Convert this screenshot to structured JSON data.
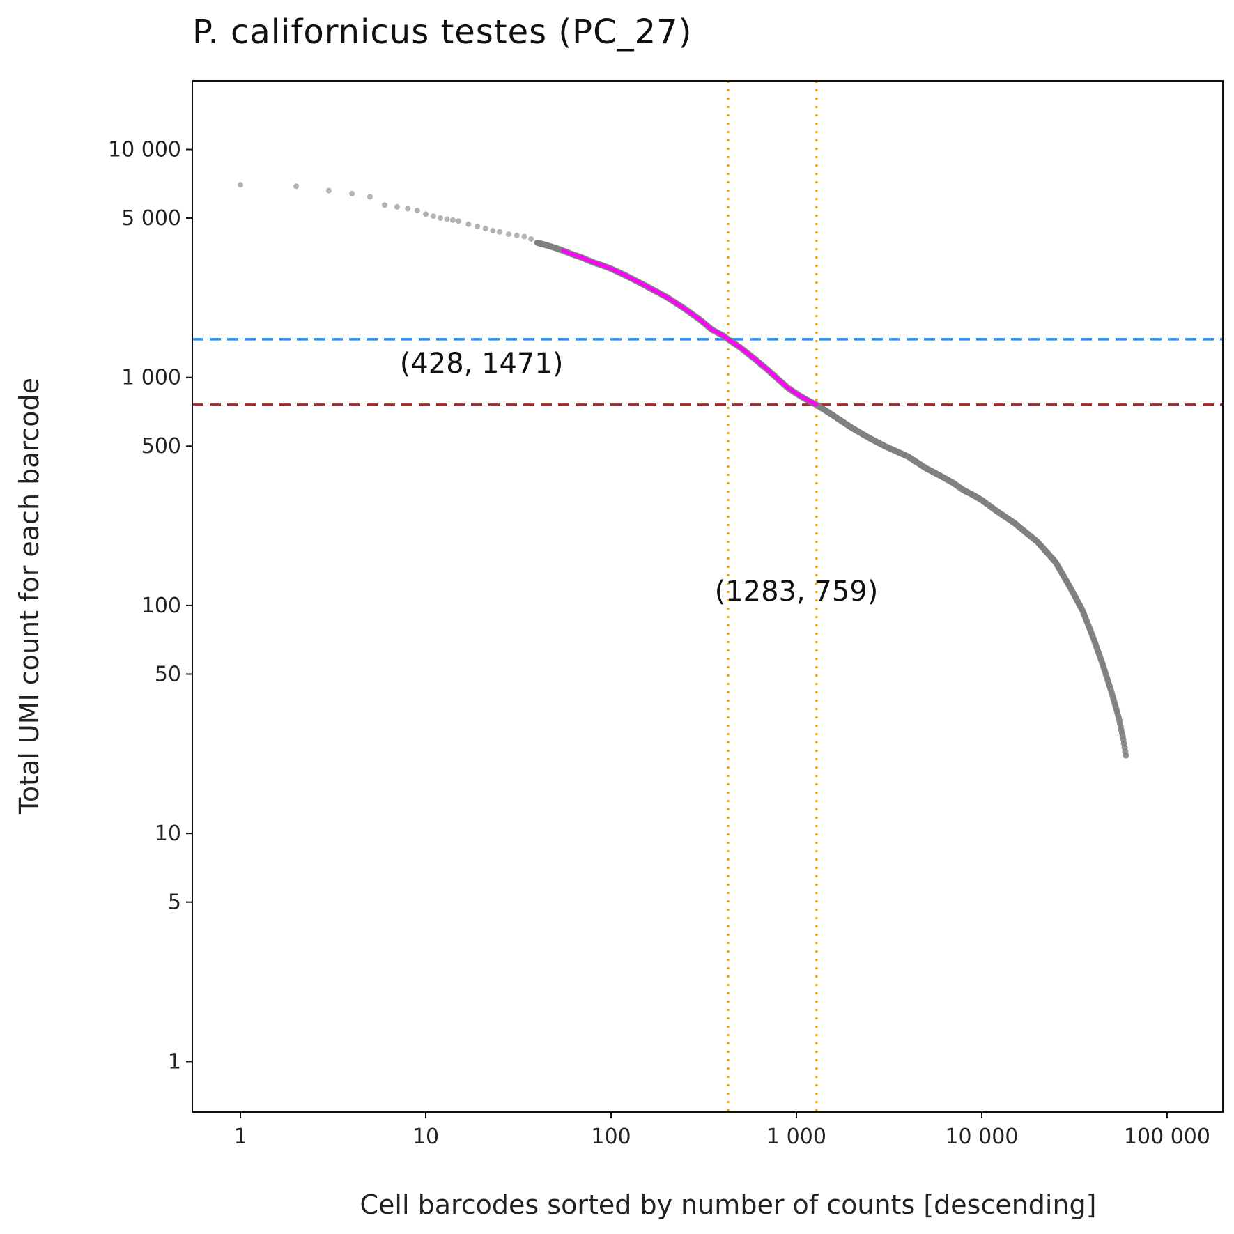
{
  "chart_data": {
    "type": "scatter",
    "title": "P. californicus testes (PC_27)",
    "xlabel": "Cell barcodes sorted by number of counts [descending]",
    "ylabel": "Total UMI count for each barcode",
    "x_scale": "log",
    "y_scale": "log",
    "xlim": [
      0.55,
      200000
    ],
    "ylim": [
      0.6,
      20000
    ],
    "x_ticks": [
      1,
      10,
      100,
      1000,
      10000,
      100000
    ],
    "x_tick_labels": [
      "1",
      "10",
      "100",
      "1 000",
      "10 000",
      "100 000"
    ],
    "y_ticks": [
      1,
      5,
      10,
      50,
      100,
      500,
      1000,
      5000,
      10000
    ],
    "y_tick_labels": [
      "1",
      "5",
      "10",
      "50",
      "100",
      "500",
      "1 000",
      "5 000",
      "10 000"
    ],
    "grid": false,
    "series": [
      {
        "color": "#808080",
        "points": [
          [
            1,
            7000
          ],
          [
            2,
            6900
          ],
          [
            3,
            6600
          ],
          [
            4,
            6400
          ],
          [
            5,
            6200
          ],
          [
            6,
            5700
          ],
          [
            7,
            5600
          ],
          [
            8,
            5500
          ],
          [
            9,
            5400
          ],
          [
            10,
            5200
          ],
          [
            11,
            5100
          ],
          [
            12,
            5000
          ],
          [
            13,
            4950
          ],
          [
            14,
            4900
          ],
          [
            15,
            4850
          ],
          [
            17,
            4700
          ],
          [
            19,
            4600
          ],
          [
            21,
            4500
          ],
          [
            23,
            4400
          ],
          [
            25,
            4350
          ],
          [
            28,
            4250
          ],
          [
            31,
            4200
          ],
          [
            34,
            4150
          ],
          [
            37,
            4050
          ],
          [
            40,
            3900
          ],
          [
            45,
            3800
          ],
          [
            50,
            3700
          ],
          [
            55,
            3600
          ],
          [
            60,
            3500
          ],
          [
            70,
            3350
          ],
          [
            80,
            3200
          ],
          [
            90,
            3100
          ],
          [
            100,
            3000
          ],
          [
            120,
            2800
          ],
          [
            150,
            2550
          ],
          [
            200,
            2250
          ],
          [
            250,
            2000
          ],
          [
            300,
            1800
          ],
          [
            350,
            1620
          ],
          [
            400,
            1530
          ],
          [
            428,
            1471
          ],
          [
            500,
            1350
          ],
          [
            600,
            1200
          ],
          [
            700,
            1080
          ],
          [
            800,
            980
          ],
          [
            900,
            900
          ],
          [
            1000,
            850
          ],
          [
            1100,
            810
          ],
          [
            1283,
            759
          ],
          [
            1500,
            700
          ],
          [
            2000,
            600
          ],
          [
            2500,
            540
          ],
          [
            3000,
            500
          ],
          [
            4000,
            450
          ],
          [
            5000,
            400
          ],
          [
            6000,
            370
          ],
          [
            7000,
            345
          ],
          [
            8000,
            320
          ],
          [
            9000,
            305
          ],
          [
            10000,
            290
          ],
          [
            12000,
            260
          ],
          [
            15000,
            230
          ],
          [
            20000,
            190
          ],
          [
            25000,
            155
          ],
          [
            30000,
            120
          ],
          [
            35000,
            95
          ],
          [
            40000,
            72
          ],
          [
            45000,
            55
          ],
          [
            50000,
            42
          ],
          [
            55000,
            32
          ],
          [
            58000,
            26
          ],
          [
            60000,
            22
          ]
        ]
      },
      {
        "color": "#ff00ff",
        "x_range": [
          55,
          1283
        ]
      }
    ],
    "reference_lines": [
      {
        "orientation": "horizontal",
        "value": 1471,
        "color": "#1e90ff",
        "style": "dashed"
      },
      {
        "orientation": "horizontal",
        "value": 759,
        "color": "#a52a2a",
        "style": "dashed"
      },
      {
        "orientation": "vertical",
        "value": 428,
        "color": "#ffa500",
        "style": "dotted"
      },
      {
        "orientation": "vertical",
        "value": 1283,
        "color": "#ffa500",
        "style": "dotted"
      }
    ],
    "annotations": [
      {
        "text": "(428, 1471)",
        "x": 20,
        "y": 1050
      },
      {
        "text": "(1283, 759)",
        "x": 1000,
        "y": 105
      }
    ]
  }
}
